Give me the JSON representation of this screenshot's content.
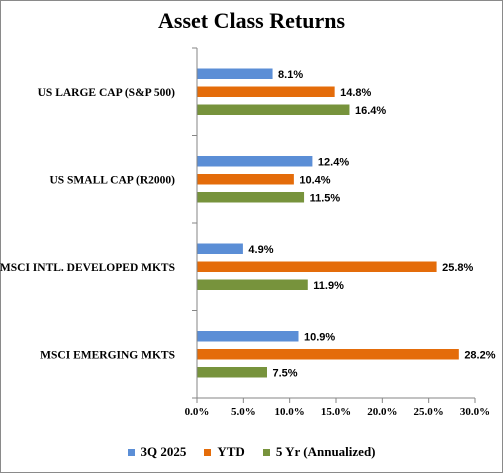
{
  "chart_data": {
    "type": "bar",
    "orientation": "horizontal",
    "title": "Asset Class Returns",
    "categories": [
      "US LARGE CAP (S&P 500)",
      "US SMALL CAP (R2000)",
      "MSCI INTL. DEVELOPED MKTS",
      "MSCI EMERGING MKTS"
    ],
    "series": [
      {
        "name": "3Q 2025",
        "color": "#5b8ed6",
        "values": [
          8.1,
          12.4,
          4.9,
          10.9
        ],
        "labels": [
          "8.1%",
          "12.4%",
          "4.9%",
          "10.9%"
        ]
      },
      {
        "name": "YTD",
        "color": "#e46c0a",
        "values": [
          14.8,
          10.4,
          25.8,
          28.2
        ],
        "labels": [
          "14.8%",
          "10.4%",
          "25.8%",
          "28.2%"
        ]
      },
      {
        "name": "5 Yr (Annualized)",
        "color": "#77933c",
        "values": [
          16.4,
          11.5,
          11.9,
          7.5
        ],
        "labels": [
          "16.4%",
          "11.5%",
          "11.9%",
          "7.5%"
        ]
      }
    ],
    "xlim": [
      0,
      30
    ],
    "xticks": [
      "0.0%",
      "5.0%",
      "10.0%",
      "15.0%",
      "20.0%",
      "25.0%",
      "30.0%"
    ],
    "grid": false,
    "legend_position": "bottom"
  }
}
